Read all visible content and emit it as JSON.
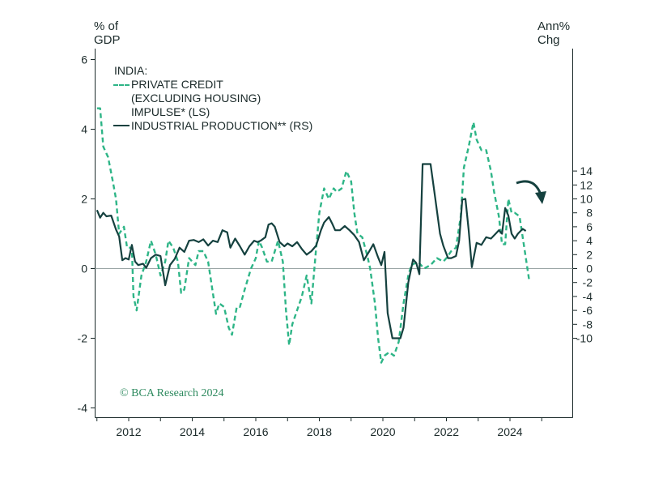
{
  "axes": {
    "left_unit": "% of\nGDP",
    "right_unit": "Ann%\nChg"
  },
  "legend": {
    "heading": "INDIA:",
    "items": [
      {
        "label": "PRIVATE CREDIT\n(EXCLUDING HOUSING)\nIMPULSE* (LS)",
        "style": "dashed",
        "color": "#2eb587"
      },
      {
        "label": "INDUSTRIAL PRODUCTION** (RS)",
        "style": "solid",
        "color": "#15413f"
      }
    ]
  },
  "credit": "© BCA Research 2024",
  "chart_data": {
    "type": "line",
    "x_range": [
      2011.0,
      2025.6
    ],
    "x_ticks": [
      "2012",
      "2014",
      "2016",
      "2018",
      "2020",
      "2022",
      "2024"
    ],
    "y_left": {
      "range": [
        -4.2,
        6.3
      ],
      "ticks": [
        "-4",
        "-2",
        "0",
        "2",
        "4",
        "6"
      ]
    },
    "y_right": {
      "range": [
        -10.6,
        15.4
      ],
      "ticks": [
        "-10",
        "-8",
        "-6",
        "-4",
        "-2",
        "0",
        "2",
        "4",
        "6",
        "8",
        "10",
        "12",
        "14"
      ]
    },
    "zero_line": true,
    "colors": {
      "credit": "#2eb587",
      "production": "#15413f",
      "axis": "#1b2a2a"
    },
    "annotation": "down-arrow-icon",
    "series": [
      {
        "name": "PRIVATE CREDIT (EXCLUDING HOUSING) IMPULSE* (LS)",
        "axis": "left",
        "points": [
          [
            2011.0,
            4.6
          ],
          [
            2011.1,
            4.6
          ],
          [
            2011.2,
            3.5
          ],
          [
            2011.35,
            3.2
          ],
          [
            2011.5,
            2.5
          ],
          [
            2011.6,
            2.0
          ],
          [
            2011.7,
            1.0
          ],
          [
            2011.85,
            1.2
          ],
          [
            2011.95,
            0.6
          ],
          [
            2012.1,
            0.6
          ],
          [
            2012.15,
            -0.8
          ],
          [
            2012.25,
            -1.2
          ],
          [
            2012.4,
            -0.2
          ],
          [
            2012.55,
            0.2
          ],
          [
            2012.7,
            0.8
          ],
          [
            2012.85,
            0.4
          ],
          [
            2013.0,
            -0.2
          ],
          [
            2013.15,
            0.2
          ],
          [
            2013.25,
            0.8
          ],
          [
            2013.4,
            0.6
          ],
          [
            2013.55,
            0.2
          ],
          [
            2013.65,
            -0.7
          ],
          [
            2013.75,
            -0.6
          ],
          [
            2013.9,
            0.3
          ],
          [
            2014.1,
            0.1
          ],
          [
            2014.2,
            0.5
          ],
          [
            2014.35,
            0.5
          ],
          [
            2014.5,
            0.2
          ],
          [
            2014.6,
            -0.4
          ],
          [
            2014.75,
            -1.3
          ],
          [
            2014.85,
            -1.0
          ],
          [
            2015.0,
            -1.1
          ],
          [
            2015.15,
            -1.7
          ],
          [
            2015.25,
            -1.9
          ],
          [
            2015.4,
            -1.1
          ],
          [
            2015.5,
            -1.1
          ],
          [
            2015.65,
            -0.6
          ],
          [
            2015.85,
            0.0
          ],
          [
            2016.0,
            0.3
          ],
          [
            2016.1,
            0.8
          ],
          [
            2016.2,
            0.6
          ],
          [
            2016.35,
            0.2
          ],
          [
            2016.5,
            0.2
          ],
          [
            2016.7,
            0.8
          ],
          [
            2016.85,
            0.2
          ],
          [
            2016.95,
            -1.2
          ],
          [
            2017.05,
            -2.2
          ],
          [
            2017.15,
            -1.6
          ],
          [
            2017.3,
            -1.2
          ],
          [
            2017.45,
            -0.8
          ],
          [
            2017.6,
            -0.2
          ],
          [
            2017.75,
            -1.0
          ],
          [
            2017.9,
            0.6
          ],
          [
            2018.0,
            1.6
          ],
          [
            2018.15,
            2.3
          ],
          [
            2018.3,
            2.0
          ],
          [
            2018.45,
            2.3
          ],
          [
            2018.55,
            2.2
          ],
          [
            2018.7,
            2.3
          ],
          [
            2018.85,
            2.8
          ],
          [
            2019.0,
            2.5
          ],
          [
            2019.1,
            1.6
          ],
          [
            2019.2,
            1.0
          ],
          [
            2019.35,
            0.9
          ],
          [
            2019.5,
            0.4
          ],
          [
            2019.6,
            0.0
          ],
          [
            2019.75,
            -1.0
          ],
          [
            2019.85,
            -2.0
          ],
          [
            2019.95,
            -2.7
          ],
          [
            2020.05,
            -2.5
          ],
          [
            2020.2,
            -2.4
          ],
          [
            2020.35,
            -2.5
          ],
          [
            2020.5,
            -2.1
          ],
          [
            2020.65,
            -1.0
          ],
          [
            2020.8,
            -0.2
          ],
          [
            2020.9,
            0.1
          ],
          [
            2021.1,
            0.2
          ],
          [
            2021.3,
            0.0
          ],
          [
            2021.5,
            0.1
          ],
          [
            2021.7,
            0.3
          ],
          [
            2021.9,
            0.2
          ],
          [
            2022.0,
            0.3
          ],
          [
            2022.15,
            0.5
          ],
          [
            2022.3,
            0.6
          ],
          [
            2022.45,
            1.5
          ],
          [
            2022.55,
            2.9
          ],
          [
            2022.7,
            3.5
          ],
          [
            2022.85,
            4.2
          ],
          [
            2022.95,
            3.7
          ],
          [
            2023.1,
            3.4
          ],
          [
            2023.25,
            3.4
          ],
          [
            2023.4,
            2.8
          ],
          [
            2023.5,
            2.2
          ],
          [
            2023.65,
            1.5
          ],
          [
            2023.75,
            0.7
          ],
          [
            2023.85,
            0.7
          ],
          [
            2023.95,
            2.0
          ],
          [
            2024.05,
            1.6
          ],
          [
            2024.15,
            1.6
          ],
          [
            2024.3,
            1.5
          ],
          [
            2024.45,
            0.6
          ],
          [
            2024.6,
            -0.3
          ]
        ]
      },
      {
        "name": "INDUSTRIAL PRODUCTION** (RS)",
        "axis": "right",
        "points": [
          [
            2011.0,
            8.4
          ],
          [
            2011.1,
            7.3
          ],
          [
            2011.2,
            8.0
          ],
          [
            2011.3,
            7.5
          ],
          [
            2011.45,
            7.6
          ],
          [
            2011.6,
            5.6
          ],
          [
            2011.7,
            4.6
          ],
          [
            2011.8,
            1.2
          ],
          [
            2011.9,
            1.5
          ],
          [
            2012.0,
            1.3
          ],
          [
            2012.1,
            3.4
          ],
          [
            2012.2,
            1.0
          ],
          [
            2012.3,
            0.5
          ],
          [
            2012.45,
            0.7
          ],
          [
            2012.55,
            0.1
          ],
          [
            2012.7,
            1.5
          ],
          [
            2012.85,
            2.0
          ],
          [
            2013.0,
            1.8
          ],
          [
            2013.15,
            -2.4
          ],
          [
            2013.3,
            0.5
          ],
          [
            2013.45,
            1.4
          ],
          [
            2013.6,
            3.0
          ],
          [
            2013.75,
            2.4
          ],
          [
            2013.9,
            4.0
          ],
          [
            2014.05,
            4.1
          ],
          [
            2014.2,
            3.8
          ],
          [
            2014.35,
            4.2
          ],
          [
            2014.5,
            3.3
          ],
          [
            2014.65,
            4.0
          ],
          [
            2014.8,
            3.8
          ],
          [
            2014.95,
            5.5
          ],
          [
            2015.1,
            5.2
          ],
          [
            2015.2,
            3.0
          ],
          [
            2015.35,
            4.3
          ],
          [
            2015.5,
            3.2
          ],
          [
            2015.65,
            2.0
          ],
          [
            2015.8,
            3.2
          ],
          [
            2015.95,
            4.0
          ],
          [
            2016.05,
            3.8
          ],
          [
            2016.15,
            4.0
          ],
          [
            2016.3,
            4.5
          ],
          [
            2016.4,
            6.3
          ],
          [
            2016.5,
            6.5
          ],
          [
            2016.6,
            6.0
          ],
          [
            2016.75,
            3.8
          ],
          [
            2016.9,
            3.2
          ],
          [
            2017.0,
            3.6
          ],
          [
            2017.15,
            3.2
          ],
          [
            2017.3,
            3.8
          ],
          [
            2017.45,
            2.8
          ],
          [
            2017.6,
            2.0
          ],
          [
            2017.75,
            2.5
          ],
          [
            2017.9,
            3.3
          ],
          [
            2018.05,
            5.5
          ],
          [
            2018.15,
            6.6
          ],
          [
            2018.3,
            7.4
          ],
          [
            2018.4,
            6.5
          ],
          [
            2018.5,
            5.5
          ],
          [
            2018.65,
            5.5
          ],
          [
            2018.8,
            6.1
          ],
          [
            2018.95,
            5.5
          ],
          [
            2019.1,
            4.8
          ],
          [
            2019.25,
            3.8
          ],
          [
            2019.4,
            1.2
          ],
          [
            2019.55,
            2.3
          ],
          [
            2019.7,
            3.5
          ],
          [
            2019.85,
            1.6
          ],
          [
            2019.95,
            0.5
          ],
          [
            2020.05,
            2.4
          ],
          [
            2020.15,
            -6.4
          ],
          [
            2020.3,
            -10.0
          ],
          [
            2020.45,
            -10.0
          ],
          [
            2020.55,
            -10.0
          ],
          [
            2020.65,
            -8.5
          ],
          [
            2020.8,
            -2.0
          ],
          [
            2020.95,
            1.3
          ],
          [
            2021.05,
            0.8
          ],
          [
            2021.15,
            -0.8
          ],
          [
            2021.25,
            15.0
          ],
          [
            2021.35,
            15.0
          ],
          [
            2021.5,
            15.0
          ],
          [
            2021.65,
            10.0
          ],
          [
            2021.8,
            5.0
          ],
          [
            2021.9,
            3.3
          ],
          [
            2022.05,
            1.5
          ],
          [
            2022.15,
            1.5
          ],
          [
            2022.3,
            1.8
          ],
          [
            2022.4,
            4.0
          ],
          [
            2022.5,
            9.9
          ],
          [
            2022.6,
            10.0
          ],
          [
            2022.7,
            5.5
          ],
          [
            2022.8,
            0.2
          ],
          [
            2022.95,
            3.7
          ],
          [
            2023.1,
            3.4
          ],
          [
            2023.25,
            4.5
          ],
          [
            2023.4,
            4.3
          ],
          [
            2023.55,
            5.0
          ],
          [
            2023.65,
            5.5
          ],
          [
            2023.75,
            5.0
          ],
          [
            2023.85,
            8.7
          ],
          [
            2023.95,
            7.6
          ],
          [
            2024.05,
            5.0
          ],
          [
            2024.15,
            4.3
          ],
          [
            2024.25,
            5.0
          ],
          [
            2024.4,
            5.7
          ],
          [
            2024.5,
            5.4
          ]
        ]
      }
    ]
  }
}
